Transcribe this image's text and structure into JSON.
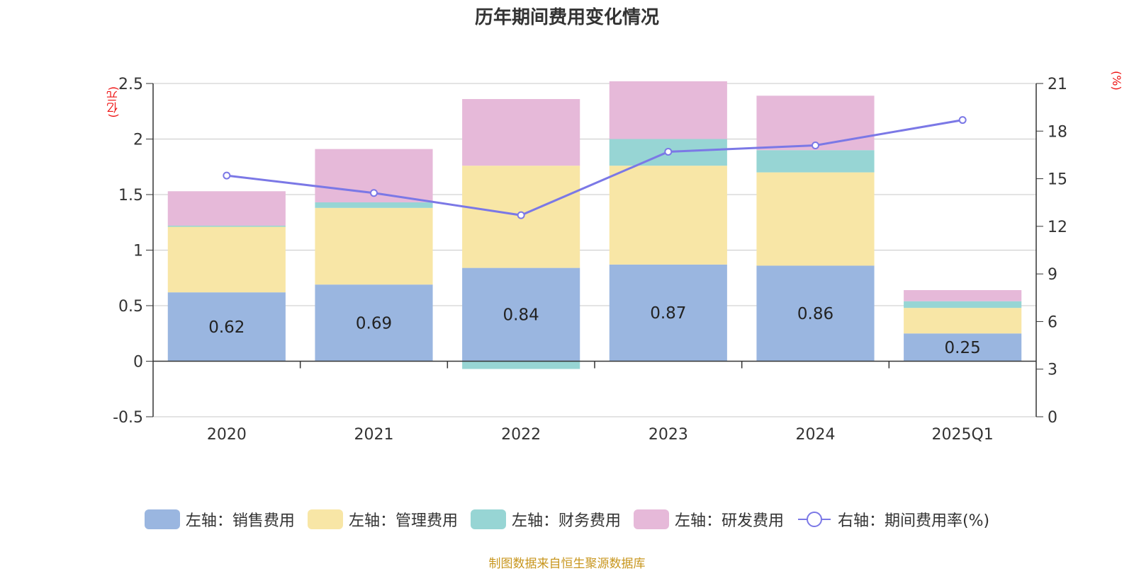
{
  "title": "历年期间费用变化情况",
  "left_unit": "(亿元)",
  "right_unit": "(%)",
  "source": "制图数据来自恒生聚源数据库",
  "legend": [
    {
      "label": "左轴：销售费用",
      "color": "#9ab6e0",
      "type": "bar"
    },
    {
      "label": "左轴：管理费用",
      "color": "#f8e6a6",
      "type": "bar"
    },
    {
      "label": "左轴：财务费用",
      "color": "#97d5d4",
      "type": "bar"
    },
    {
      "label": "左轴：研发费用",
      "color": "#e6b9d9",
      "type": "bar"
    },
    {
      "label": "右轴：期间费用率(%)",
      "color": "#7b78e6",
      "type": "line"
    }
  ],
  "chart_data": {
    "type": "bar",
    "stacked": true,
    "categories": [
      "2020",
      "2021",
      "2022",
      "2023",
      "2024",
      "2025Q1"
    ],
    "series": [
      {
        "name": "左轴：销售费用",
        "axis": "left",
        "values": [
          0.62,
          0.69,
          0.84,
          0.87,
          0.86,
          0.25
        ],
        "color": "#9ab6e0"
      },
      {
        "name": "左轴：管理费用",
        "axis": "left",
        "values": [
          0.59,
          0.69,
          0.92,
          0.89,
          0.84,
          0.23
        ],
        "color": "#f8e6a6"
      },
      {
        "name": "左轴：财务费用",
        "axis": "left",
        "values": [
          0.01,
          0.05,
          -0.07,
          0.24,
          0.2,
          0.06
        ],
        "color": "#97d5d4"
      },
      {
        "name": "左轴：研发费用",
        "axis": "left",
        "values": [
          0.31,
          0.48,
          0.6,
          0.52,
          0.49,
          0.1
        ],
        "color": "#e6b9d9"
      },
      {
        "name": "右轴：期间费用率(%)",
        "axis": "right",
        "type": "line",
        "values": [
          15.2,
          14.1,
          12.7,
          16.7,
          17.1,
          18.7
        ],
        "color": "#7b78e6"
      }
    ],
    "bar_labels": [
      "0.62",
      "0.69",
      "0.84",
      "0.87",
      "0.86",
      "0.25"
    ],
    "y_left": {
      "min": -0.5,
      "max": 2.5,
      "ticks": [
        "-0.5",
        "0",
        "0.5",
        "1",
        "1.5",
        "2",
        "2.5"
      ]
    },
    "y_right": {
      "min": 0,
      "max": 21,
      "ticks": [
        "0",
        "3",
        "6",
        "9",
        "12",
        "15",
        "18",
        "21"
      ]
    },
    "grid": true,
    "legend_position": "bottom"
  }
}
